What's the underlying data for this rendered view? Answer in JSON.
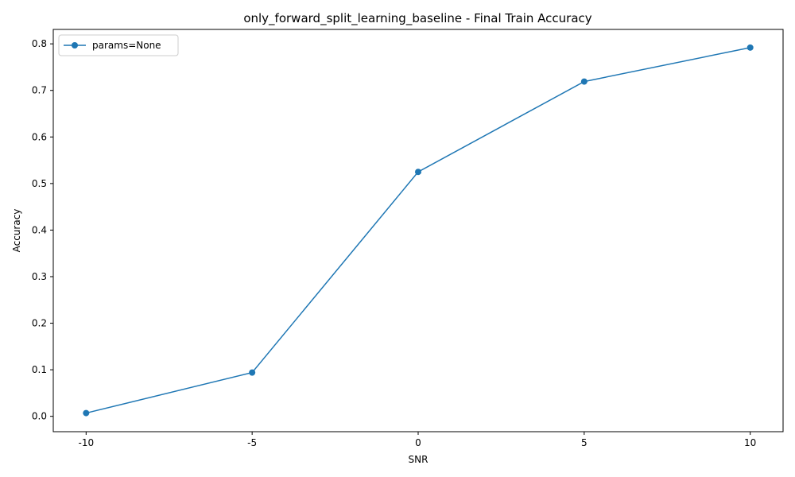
{
  "chart_data": {
    "type": "line",
    "title": "only_forward_split_learning_baseline - Final Train Accuracy",
    "xlabel": "SNR",
    "ylabel": "Accuracy",
    "x_tick_labels": [
      "-10",
      "-5",
      "0",
      "5",
      "10"
    ],
    "y_ticks": [
      0.0,
      0.1,
      0.2,
      0.3,
      0.4,
      0.5,
      0.6,
      0.7,
      0.8
    ],
    "y_tick_labels": [
      "0.0",
      "0.1",
      "0.2",
      "0.3",
      "0.4",
      "0.5",
      "0.6",
      "0.7",
      "0.8"
    ],
    "ylim": [
      -0.033,
      0.831
    ],
    "grid": false,
    "legend_placement": "upper-left",
    "series": [
      {
        "name": "params=None",
        "color": "#1f77b4",
        "marker": "circle",
        "x": [
          -10,
          -5,
          0,
          5,
          10
        ],
        "y": [
          0.007,
          0.094,
          0.525,
          0.719,
          0.792
        ]
      }
    ]
  }
}
